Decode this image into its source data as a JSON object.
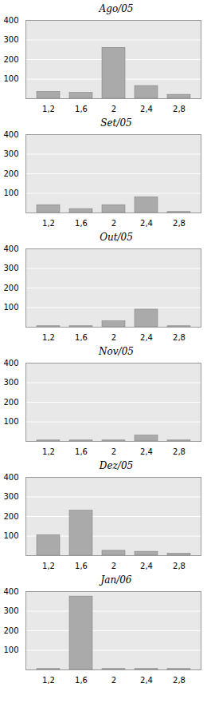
{
  "chart_data": [
    {
      "type": "bar",
      "title": "Ago/05",
      "categories": [
        "1,2",
        "1,6",
        "2",
        "2,4",
        "2,8"
      ],
      "values": [
        35,
        30,
        260,
        65,
        20
      ],
      "color": "#aaaaaa",
      "ylim": [
        0,
        400
      ],
      "yticks": [
        100,
        200,
        300,
        400
      ],
      "grid": true
    },
    {
      "type": "bar",
      "title": "Set/05",
      "categories": [
        "1,2",
        "1,6",
        "2",
        "2,4",
        "2,8"
      ],
      "values": [
        40,
        20,
        40,
        80,
        5
      ],
      "color": "#aaaaaa",
      "ylim": [
        0,
        400
      ],
      "yticks": [
        100,
        200,
        300,
        400
      ],
      "grid": true
    },
    {
      "type": "bar",
      "title": "Out/05",
      "categories": [
        "1,2",
        "1,6",
        "2",
        "2,4",
        "2,8"
      ],
      "values": [
        5,
        5,
        30,
        90,
        5
      ],
      "color": "#aaaaaa",
      "ylim": [
        0,
        400
      ],
      "yticks": [
        100,
        200,
        300,
        400
      ],
      "grid": true
    },
    {
      "type": "bar",
      "title": "Nov/05",
      "categories": [
        "1,2",
        "1,6",
        "2",
        "2,4",
        "2,8"
      ],
      "values": [
        5,
        5,
        5,
        30,
        5
      ],
      "color": "#aaaaaa",
      "ylim": [
        0,
        400
      ],
      "yticks": [
        100,
        200,
        300,
        400
      ],
      "grid": true
    },
    {
      "type": "bar",
      "title": "Dez/05",
      "categories": [
        "1,2",
        "1,6",
        "2",
        "2,4",
        "2,8"
      ],
      "values": [
        105,
        230,
        25,
        20,
        10
      ],
      "color": "#aaaaaa",
      "ylim": [
        0,
        400
      ],
      "yticks": [
        100,
        200,
        300,
        400
      ],
      "grid": true
    },
    {
      "type": "bar",
      "title": "Jan/06",
      "categories": [
        "1,2",
        "1,6",
        "2",
        "2,4",
        "2,8"
      ],
      "values": [
        5,
        375,
        5,
        5,
        5
      ],
      "color": "#aaaaaa",
      "ylim": [
        0,
        400
      ],
      "yticks": [
        100,
        200,
        300,
        400
      ],
      "grid": true
    }
  ]
}
